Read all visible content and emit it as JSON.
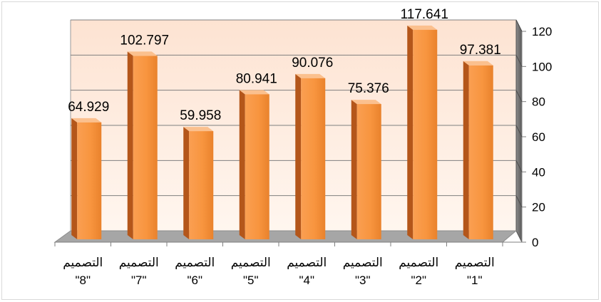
{
  "chart_data": {
    "type": "bar",
    "categories": [
      {
        "line1": "التصميم",
        "line2": "\"1\""
      },
      {
        "line1": "التصميم",
        "line2": "\"2\""
      },
      {
        "line1": "التصميم",
        "line2": "\"3\""
      },
      {
        "line1": "التصميم",
        "line2": "\"4\""
      },
      {
        "line1": "التصميم",
        "line2": "\"5\""
      },
      {
        "line1": "التصميم",
        "line2": "\"6\""
      },
      {
        "line1": "التصميم",
        "line2": "\"7\""
      },
      {
        "line1": "التصميم",
        "line2": "\"8\""
      }
    ],
    "values": [
      97.381,
      117.641,
      75.376,
      90.076,
      80.941,
      59.958,
      102.797,
      64.929
    ],
    "data_labels": [
      "97.381",
      "117.641",
      "75.376",
      "90.076",
      "80.941",
      "59.958",
      "102.797",
      "64.929"
    ],
    "ylim": [
      0,
      120
    ],
    "yticks": [
      "0",
      "20",
      "40",
      "60",
      "80",
      "100",
      "120"
    ],
    "y_axis_position": "right",
    "category_order": "right-to-left",
    "grid": true,
    "style": "3d-column",
    "colors": {
      "bar_front": "#f79646",
      "bar_side": "#b4561a",
      "bar_top": "#fbc08e",
      "back_wall": "#fde9dc",
      "side_wall": "#707070",
      "floor": "#a6a6a6",
      "gridline": "#7f7f7f"
    }
  }
}
